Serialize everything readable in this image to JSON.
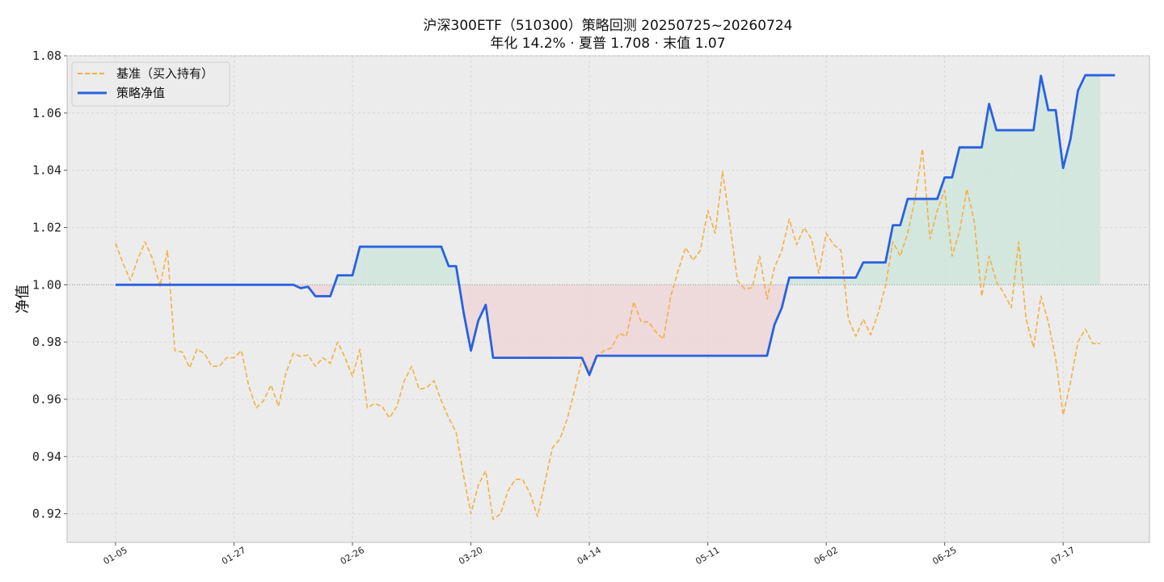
{
  "chart_data": {
    "type": "line",
    "title": "沪深300ETF（510300）策略回测  20250725~20260724",
    "subtitle": "年化 14.2%  ·  夏普 1.708  ·  末值 1.07",
    "xlabel": "",
    "ylabel": "净值",
    "ylim": [
      0.91,
      1.08
    ],
    "yticks": [
      "0.92",
      "0.94",
      "0.96",
      "0.98",
      "1.00",
      "1.02",
      "1.04",
      "1.06",
      "1.08"
    ],
    "yticks_values": [
      0.92,
      0.94,
      0.96,
      0.98,
      1.0,
      1.02,
      1.04,
      1.06,
      1.08
    ],
    "xticks": [
      {
        "label": "01-05",
        "index": 0
      },
      {
        "label": "01-27",
        "index": 16
      },
      {
        "label": "02-26",
        "index": 32
      },
      {
        "label": "03-20",
        "index": 48
      },
      {
        "label": "04-14",
        "index": 64
      },
      {
        "label": "05-11",
        "index": 80
      },
      {
        "label": "06-02",
        "index": 96
      },
      {
        "label": "06-25",
        "index": 112
      },
      {
        "label": "07-17",
        "index": 128
      }
    ],
    "x_count": 134,
    "baseline": 1.0,
    "grid": true,
    "legend_position": "top-left",
    "series": [
      {
        "name": "基准（买入持有）",
        "style": "dashed",
        "color": "#f5b041",
        "values": [
          1.0145,
          1.0075,
          1.0015,
          1.009,
          1.015,
          1.009,
          0.9995,
          1.012,
          0.977,
          0.9765,
          0.971,
          0.9775,
          0.976,
          0.9715,
          0.9715,
          0.9745,
          0.9745,
          0.977,
          0.9645,
          0.957,
          0.9595,
          0.965,
          0.9575,
          0.969,
          0.976,
          0.975,
          0.9755,
          0.9715,
          0.9745,
          0.9725,
          0.98,
          0.9745,
          0.968,
          0.9775,
          0.957,
          0.9585,
          0.9575,
          0.9535,
          0.9575,
          0.9665,
          0.9715,
          0.9635,
          0.964,
          0.9665,
          0.9595,
          0.9535,
          0.9485,
          0.9335,
          0.92,
          0.93,
          0.935,
          0.918,
          0.92,
          0.928,
          0.932,
          0.932,
          0.927,
          0.919,
          0.931,
          0.943,
          0.946,
          0.953,
          0.963,
          0.974,
          0.97,
          0.975,
          0.977,
          0.978,
          0.983,
          0.982,
          0.994,
          0.987,
          0.987,
          0.9835,
          0.981,
          0.996,
          1.005,
          1.013,
          1.0085,
          1.012,
          1.026,
          1.018,
          1.0395,
          1.021,
          1.0015,
          0.9985,
          0.999,
          1.01,
          0.995,
          1.006,
          1.012,
          1.023,
          1.014,
          1.02,
          1.016,
          1.004,
          1.018,
          1.014,
          1.012,
          0.988,
          0.982,
          0.988,
          0.9825,
          0.99,
          0.9995,
          1.015,
          1.01,
          1.018,
          1.03,
          1.0475,
          1.016,
          1.026,
          1.033,
          1.01,
          1.0185,
          1.0335,
          1.022,
          0.996,
          1.01,
          1.001,
          0.997,
          0.992,
          1.015,
          0.988,
          0.978,
          0.996,
          0.987,
          0.974,
          0.9545,
          0.966,
          0.98,
          0.9845,
          0.9795,
          0.9795
        ]
      },
      {
        "name": "策略净值",
        "style": "solid",
        "color": "#2962e0",
        "values": [
          1.0,
          1.0,
          1.0,
          1.0,
          1.0,
          1.0,
          1.0,
          1.0,
          1.0,
          1.0,
          1.0,
          1.0,
          1.0,
          1.0,
          1.0,
          1.0,
          1.0,
          1.0,
          1.0,
          1.0,
          1.0,
          1.0,
          1.0,
          1.0,
          1.0,
          0.9988,
          0.9993,
          0.996,
          0.996,
          0.996,
          1.0033,
          1.0033,
          1.0033,
          1.0133,
          1.0133,
          1.0133,
          1.0133,
          1.0133,
          1.0133,
          1.0133,
          1.0133,
          1.0133,
          1.0133,
          1.0133,
          1.0133,
          1.0065,
          1.0065,
          0.9905,
          0.977,
          0.9875,
          0.993,
          0.9745,
          0.9745,
          0.9745,
          0.9745,
          0.9745,
          0.9745,
          0.9745,
          0.9745,
          0.9745,
          0.9745,
          0.9745,
          0.9745,
          0.9745,
          0.9685,
          0.9752,
          0.9752,
          0.9752,
          0.9752,
          0.9752,
          0.9752,
          0.9752,
          0.9752,
          0.9752,
          0.9752,
          0.9752,
          0.9752,
          0.9752,
          0.9752,
          0.9752,
          0.9752,
          0.9752,
          0.9752,
          0.9752,
          0.9752,
          0.9752,
          0.9752,
          0.9752,
          0.9752,
          0.986,
          0.992,
          1.0025,
          1.0025,
          1.0025,
          1.0025,
          1.0025,
          1.0025,
          1.0025,
          1.0025,
          1.0025,
          1.0025,
          1.0078,
          1.0078,
          1.0078,
          1.0078,
          1.0208,
          1.0208,
          1.03,
          1.03,
          1.03,
          1.03,
          1.03,
          1.0375,
          1.0375,
          1.048,
          1.048,
          1.048,
          1.048,
          1.0632,
          1.054,
          1.054,
          1.054,
          1.054,
          1.054,
          1.054,
          1.073,
          1.061,
          1.061,
          1.0408,
          1.051,
          1.0678,
          1.0732,
          1.0732,
          1.0732,
          1.0732,
          1.0732
        ]
      }
    ]
  }
}
